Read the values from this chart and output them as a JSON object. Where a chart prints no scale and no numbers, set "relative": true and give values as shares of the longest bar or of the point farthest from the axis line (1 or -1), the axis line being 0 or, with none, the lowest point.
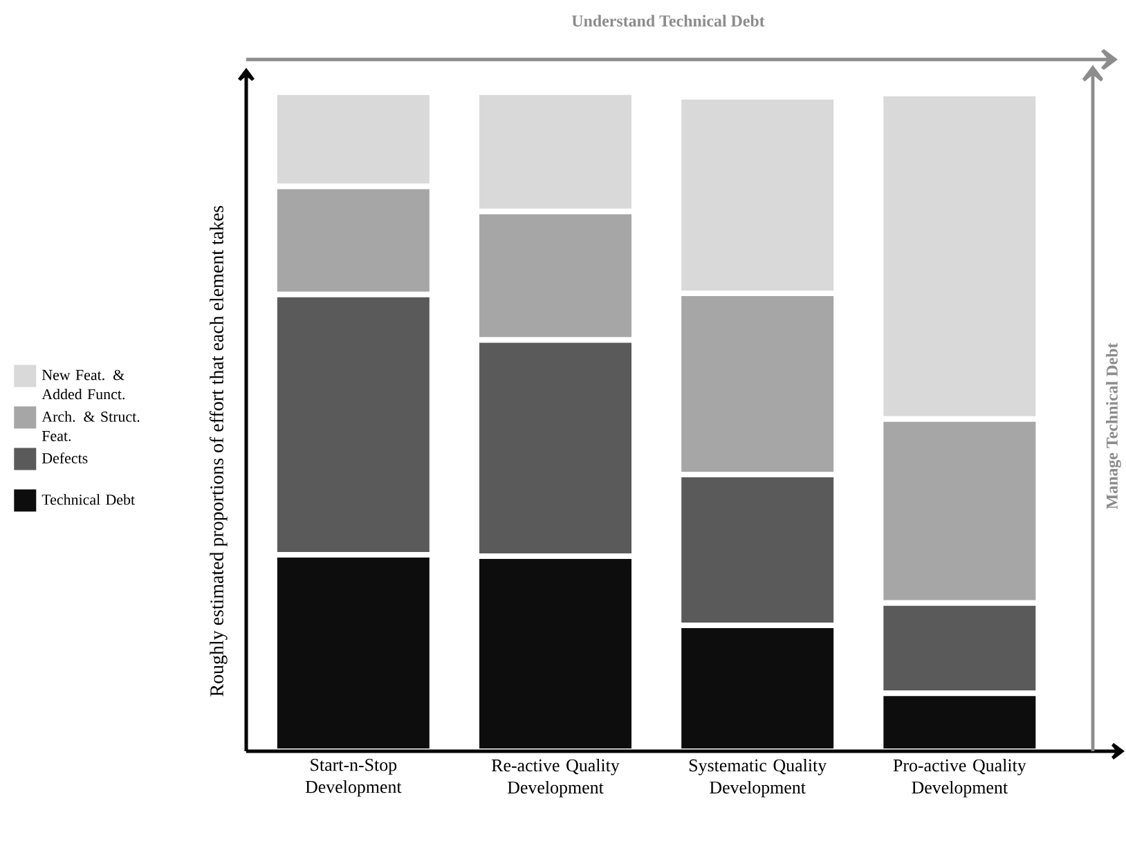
{
  "chart_data": {
    "type": "bar",
    "stacked": true,
    "relative": true,
    "ylabel": "Roughly estimated proportions of effort that each element takes",
    "categories": [
      "Start-n-Stop Development",
      "Re-active Quality Development",
      "Systematic Quality Development",
      "Pro-active Quality Development"
    ],
    "series": [
      {
        "name": "Technical Debt",
        "color": "#0d0d0d",
        "values": [
          0.298,
          0.296,
          0.191,
          0.088
        ]
      },
      {
        "name": "Defects",
        "color": "#5a5a5a",
        "values": [
          0.395,
          0.328,
          0.229,
          0.137
        ]
      },
      {
        "name": "Arch. & Struct. Feat.",
        "color": "#a6a6a6",
        "values": [
          0.164,
          0.195,
          0.275,
          0.279
        ]
      },
      {
        "name": "New Feat. & Added Funct.",
        "color": "#d9d9d9",
        "values": [
          0.143,
          0.181,
          0.298,
          0.494
        ]
      }
    ],
    "legend": "left",
    "annotations": [
      "Understand Technical Debt",
      "Manage Technical Debt"
    ]
  }
}
